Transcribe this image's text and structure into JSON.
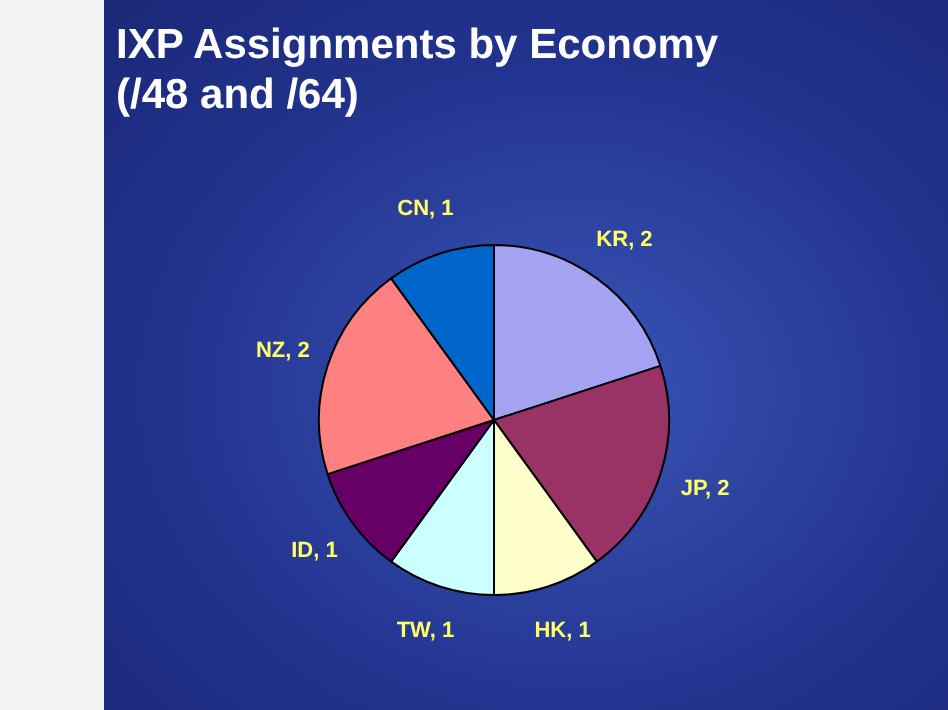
{
  "chart_data": {
    "type": "pie",
    "title": "IXP Assignments by Economy (/48 and /64)",
    "categories": [
      "KR, 2",
      "JP, 2",
      "HK, 1",
      "TW, 1",
      "ID, 1",
      "NZ, 2",
      "CN, 1"
    ],
    "values": [
      2,
      2,
      1,
      1,
      1,
      2,
      1
    ],
    "colors": [
      "#a3a3f2",
      "#993366",
      "#ffffcc",
      "#ccffff",
      "#660066",
      "#ff8080",
      "#0066cc"
    ],
    "legend": false
  }
}
